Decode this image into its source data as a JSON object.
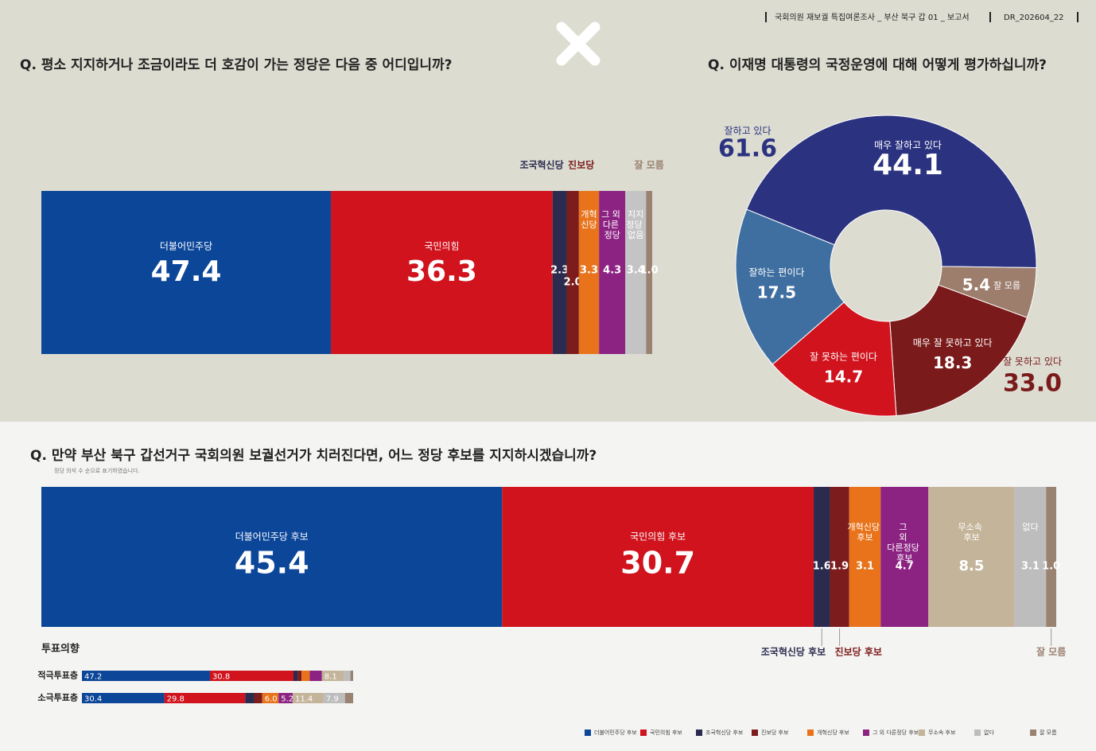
{
  "header": {
    "report": "국회의원 재보궐 특집여론조사 _ 부산 북구 갑 01 _ 보고서",
    "code": "DR_202604_22"
  },
  "chart_data": [
    {
      "type": "stacked-bar-100",
      "title": "Q. 평소 지지하거나 조금이라도 더 호감이 가는 정당은 다음 중 어디입니까?",
      "categories": [
        "더불어민주당",
        "국민의힘",
        "조국혁신당",
        "진보당",
        "개혁신당",
        "그 외 다른 정당",
        "지지정당 없음",
        "잘 모름"
      ],
      "values": [
        47.4,
        36.3,
        2.3,
        2.0,
        3.3,
        4.3,
        3.4,
        1.0
      ],
      "value_labels": [
        "47.4",
        "36.3",
        "2.3",
        "2.0",
        "3.3",
        "4.3",
        "3.4",
        "1.0"
      ],
      "colors": [
        "#0b4699",
        "#d0131d",
        "#2b2b4f",
        "#7c1c1c",
        "#e8731a",
        "#8c2383",
        "#c4c4c4",
        "#9a8272"
      ]
    },
    {
      "type": "donut",
      "title": "Q. 이재명 대통령의 국정운영에 대해 어떻게 평가하십니까?",
      "categories": [
        "매우 잘하고 있다",
        "잘 모름",
        "매우 잘 못하고 있다",
        "잘 못하는 편이다",
        "잘하는 편이다"
      ],
      "values": [
        44.1,
        5.4,
        18.3,
        14.7,
        17.5
      ],
      "colors": [
        "#2b3280",
        "#9d7e6d",
        "#7a1a1a",
        "#d0131d",
        "#3f6fa0"
      ],
      "groups": [
        {
          "name": "잘하고 있다",
          "value": 61.6
        },
        {
          "name": "잘 못하고 있다",
          "value": 33.0,
          "value_label": "33.0"
        }
      ]
    },
    {
      "type": "stacked-bar-100",
      "title": "Q. 만약 부산 북구 갑선거구 국회의원 보궐선거가 치러진다면, 어느 정당 후보를 지지하시겠습니까?",
      "subtitle": "정당 의석 수 순으로 표기하였습니다.",
      "categories": [
        "더불어민주당 후보",
        "국민의힘 후보",
        "조국혁신당 후보",
        "진보당 후보",
        "개혁신당 후보",
        "그 외 다른정당 후보",
        "무소속 후보",
        "없다",
        "잘 모름"
      ],
      "values": [
        45.4,
        30.7,
        1.6,
        1.9,
        3.1,
        4.7,
        8.5,
        3.1,
        1.0
      ],
      "value_labels": [
        "45.4",
        "30.7",
        "1.6",
        "1.9",
        "3.1",
        "4.7",
        "8.5",
        "3.1",
        "1.0"
      ],
      "colors": [
        "#0b4699",
        "#d0131d",
        "#2b2b4f",
        "#7c1c1c",
        "#e8731a",
        "#8c2383",
        "#c4b49a",
        "#bdbdbd",
        "#9a8272"
      ]
    },
    {
      "type": "stacked-bar-rows",
      "title": "투표의향",
      "categories": [
        "적극투표층",
        "소극투표층"
      ],
      "legend": "bottom-right",
      "series": [
        {
          "name": "더불어민주당 후보",
          "color": "#0b4699",
          "values": [
            47.2,
            30.4
          ],
          "value_labels": [
            "47.2",
            "30.4"
          ]
        },
        {
          "name": "국민의힘 후보",
          "color": "#d0131d",
          "values": [
            30.8,
            29.8
          ],
          "value_labels": [
            "30.8",
            "29.8"
          ]
        },
        {
          "name": "조국혁신당 후보",
          "color": "#2b2b4f",
          "values": [
            1.5,
            3.3
          ],
          "value_labels": [
            null,
            null
          ]
        },
        {
          "name": "진보당 후보",
          "color": "#7c1c1c",
          "values": [
            1.5,
            3.0
          ],
          "value_labels": [
            null,
            null
          ]
        },
        {
          "name": "개혁신당 후보",
          "color": "#e8731a",
          "values": [
            3.0,
            6.0
          ],
          "value_labels": [
            null,
            "6.0"
          ]
        },
        {
          "name": "그 외 다른정당 후보",
          "color": "#8c2383",
          "values": [
            4.5,
            5.2
          ],
          "value_labels": [
            null,
            "5.2"
          ]
        },
        {
          "name": "무소속 후보",
          "color": "#c4b49a",
          "values": [
            8.1,
            11.4
          ],
          "value_labels": [
            "8.1",
            "11.4"
          ]
        },
        {
          "name": "없다",
          "color": "#bdbdbd",
          "values": [
            2.4,
            7.9
          ],
          "value_labels": [
            null,
            "7.9"
          ]
        },
        {
          "name": "잘 모름",
          "color": "#9a8272",
          "values": [
            1.0,
            3.0
          ],
          "value_labels": [
            null,
            null
          ]
        }
      ]
    }
  ]
}
